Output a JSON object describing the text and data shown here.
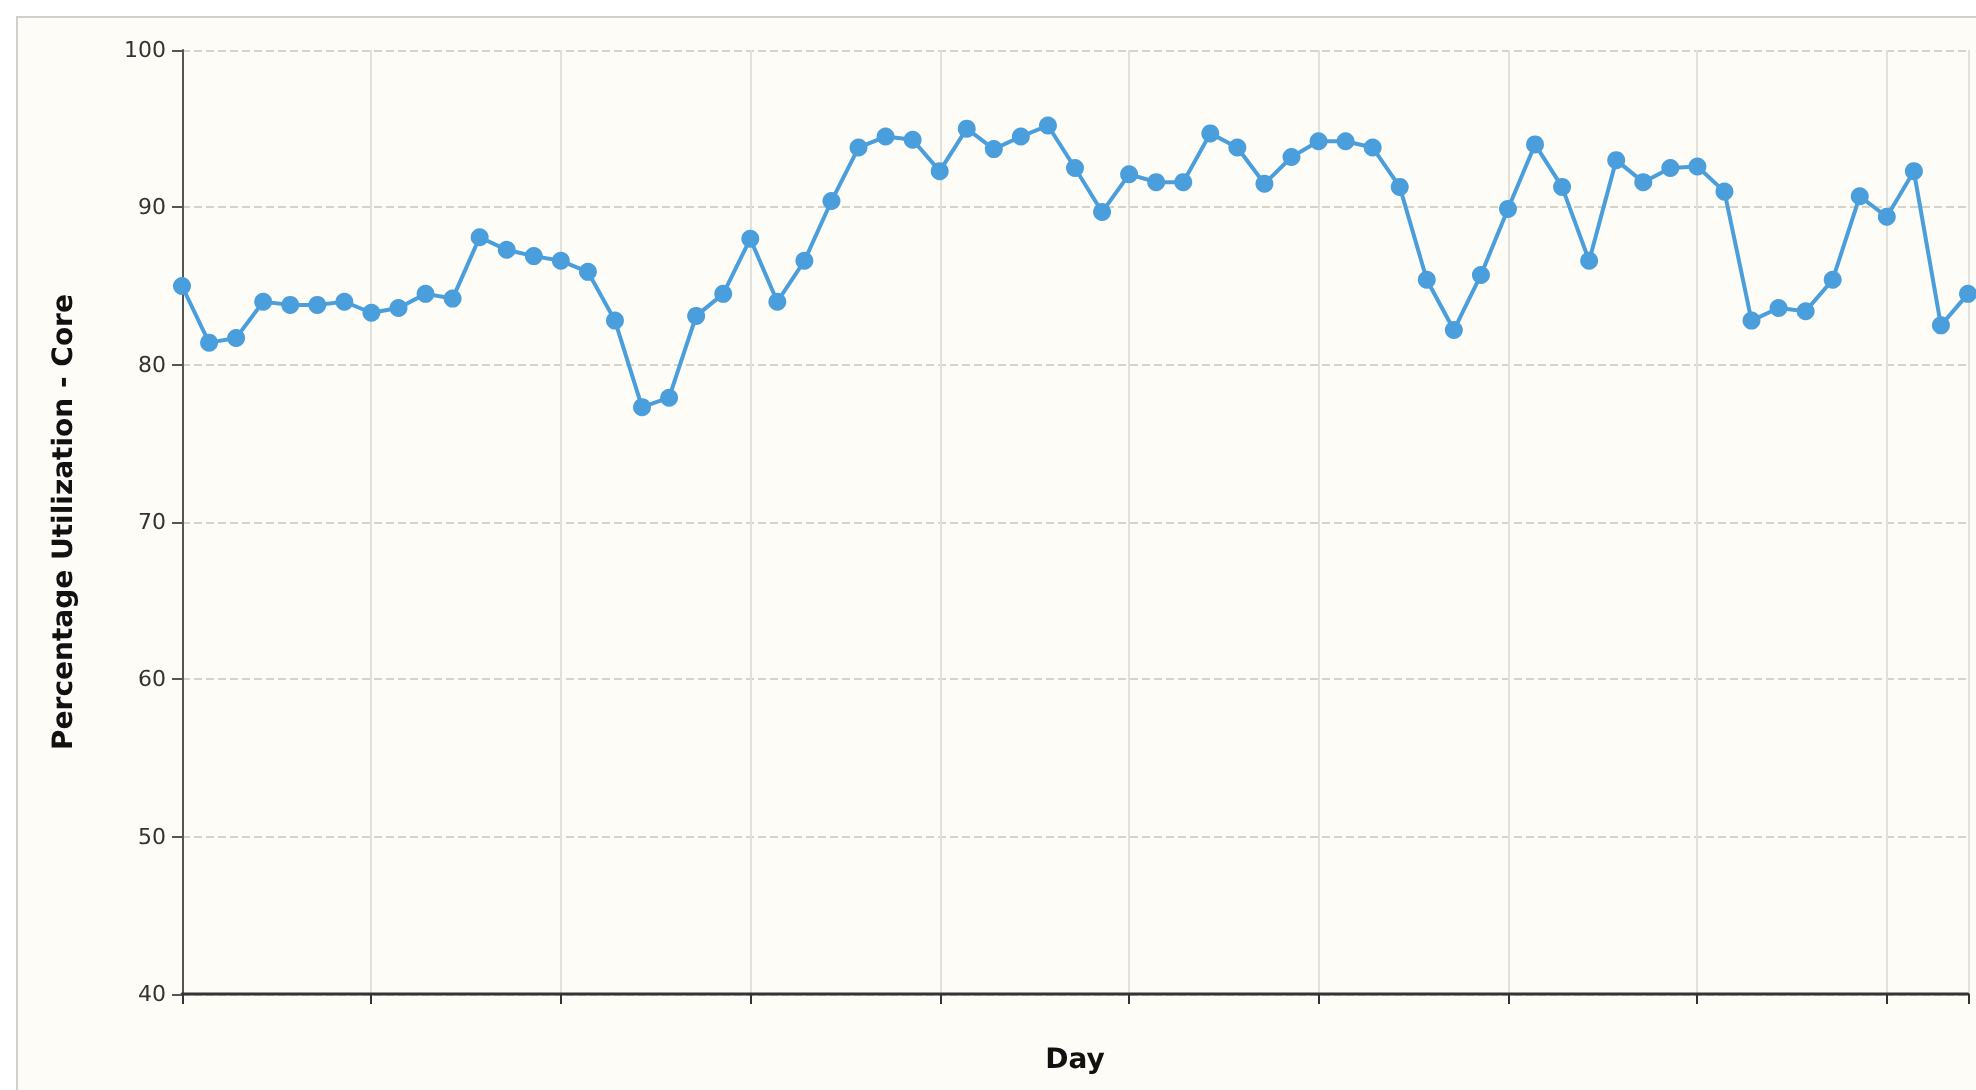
{
  "chart_data": {
    "type": "line",
    "xlabel": "Day",
    "ylabel": "Percentage Utilization - Core",
    "categories": [
      null,
      null,
      null,
      null,
      null,
      null,
      null,
      null,
      null,
      null,
      null,
      null,
      null,
      null,
      null,
      null,
      null,
      null,
      null,
      null,
      null,
      null,
      null,
      null,
      null,
      null,
      null,
      null,
      null,
      null,
      null,
      null,
      null,
      null,
      null,
      null,
      null,
      null,
      null,
      null,
      null,
      null,
      null,
      null,
      null,
      null,
      null,
      null,
      null,
      null,
      null,
      null,
      null,
      null,
      null,
      null,
      null,
      null,
      null,
      null,
      null,
      null,
      null,
      null,
      null,
      null,
      null
    ],
    "series": [
      {
        "color": "#4a9edb",
        "values": [
          85.0,
          81.4,
          81.7,
          84.0,
          83.8,
          83.8,
          84.0,
          83.3,
          83.6,
          84.5,
          84.2,
          88.1,
          87.3,
          86.9,
          86.6,
          85.9,
          82.8,
          77.3,
          77.9,
          83.1,
          84.5,
          88.0,
          84.0,
          86.6,
          90.4,
          93.8,
          94.5,
          94.3,
          92.3,
          95.0,
          93.7,
          94.5,
          95.2,
          92.5,
          89.7,
          92.1,
          91.6,
          91.6,
          94.7,
          93.8,
          91.5,
          93.2,
          94.2,
          94.2,
          93.8,
          91.3,
          85.4,
          82.2,
          85.7,
          89.9,
          94.0,
          91.3,
          86.6,
          93.0,
          91.6,
          92.5,
          92.6,
          91.0,
          82.8,
          83.6,
          83.4,
          85.4,
          90.7,
          89.4,
          92.3,
          82.5,
          84.5
        ]
      }
    ],
    "ylim": [
      40,
      100
    ],
    "yticks": [
      40,
      50,
      60,
      70,
      80,
      90,
      100
    ],
    "grid": true,
    "marker": "circle",
    "line_style": "solid"
  }
}
